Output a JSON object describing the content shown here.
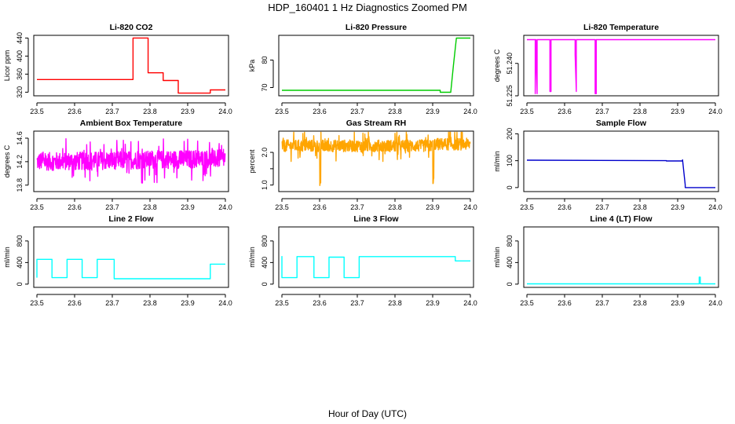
{
  "title": "HDP_160401  1 Hz Diagnostics Zoomed PM",
  "xlabel": "Hour of Day (UTC)",
  "chart_data": [
    {
      "type": "line",
      "title": "Li-820 CO2",
      "ylabel": "Licor ppm",
      "color": "#ff0000",
      "xlim": [
        23.5,
        24.0
      ],
      "ylim": [
        312,
        446
      ],
      "xticks": [
        23.5,
        23.6,
        23.7,
        23.8,
        23.9,
        24.0
      ],
      "yticks": [
        320,
        360,
        400,
        440
      ],
      "noise": 0,
      "x": [
        23.5,
        23.755,
        23.755,
        23.795,
        23.795,
        23.835,
        23.835,
        23.875,
        23.875,
        23.96,
        23.96,
        24.0
      ],
      "y": [
        348,
        348,
        440,
        440,
        363,
        363,
        346,
        346,
        318,
        318,
        325,
        325
      ]
    },
    {
      "type": "line",
      "title": "Li-820 Pressure",
      "ylabel": "kPa",
      "color": "#00cc00",
      "xlim": [
        23.5,
        24.0
      ],
      "ylim": [
        67,
        89
      ],
      "xticks": [
        23.5,
        23.6,
        23.7,
        23.8,
        23.9,
        24.0
      ],
      "yticks": [
        70,
        80
      ],
      "noise": 0,
      "x": [
        23.5,
        23.92,
        23.92,
        23.948,
        23.955,
        23.963,
        24.0
      ],
      "y": [
        69,
        69,
        68.3,
        68.3,
        78,
        88,
        88
      ]
    },
    {
      "type": "line",
      "title": "Li-820 Temperature",
      "ylabel": "degrees C",
      "color": "#ff00ff",
      "xlim": [
        23.5,
        24.0
      ],
      "ylim": [
        51.225,
        51.253
      ],
      "xticks": [
        23.5,
        23.6,
        23.7,
        23.8,
        23.9,
        24.0
      ],
      "yticks": [
        51.225,
        51.24
      ],
      "ytick_labels": [
        "51.225",
        "51.240"
      ],
      "noise": 0,
      "x": [
        23.5,
        23.522,
        23.522,
        23.524,
        23.527,
        23.527,
        23.561,
        23.561,
        23.564,
        23.564,
        23.628,
        23.628,
        23.631,
        23.631,
        23.681,
        23.681,
        23.684,
        23.684,
        24.0
      ],
      "y": [
        51.251,
        51.251,
        51.226,
        51.251,
        51.226,
        51.251,
        51.251,
        51.227,
        51.227,
        51.251,
        51.251,
        51.244,
        51.227,
        51.251,
        51.251,
        51.226,
        51.226,
        51.251,
        51.251
      ]
    },
    {
      "type": "line",
      "title": "Ambient Box Temperature",
      "ylabel": "degrees C",
      "color": "#ff00ff",
      "xlim": [
        23.5,
        24.0
      ],
      "ylim": [
        13.69,
        14.72
      ],
      "xticks": [
        23.5,
        23.6,
        23.7,
        23.8,
        23.9,
        24.0
      ],
      "yticks": [
        13.8,
        14.2,
        14.6
      ],
      "noise": 0.3,
      "x": [
        23.5,
        24.0
      ],
      "y": [
        14.2,
        14.25
      ]
    },
    {
      "type": "line",
      "title": "Gas Stream RH",
      "ylabel": "percent",
      "color": "#ffa500",
      "xlim": [
        23.5,
        24.0
      ],
      "ylim": [
        0.8,
        2.65
      ],
      "xticks": [
        23.5,
        23.6,
        23.7,
        23.8,
        23.9,
        24.0
      ],
      "yticks": [
        1.0,
        1.5,
        2.0
      ],
      "ytick_labels": [
        "1.0",
        "",
        "2.0"
      ],
      "noise": 0.2,
      "x": [
        23.5,
        23.6,
        23.6,
        23.603,
        23.603,
        23.9,
        23.9,
        23.903,
        23.903,
        24.0
      ],
      "y": [
        2.2,
        2.2,
        0.9,
        0.9,
        2.2,
        2.2,
        1.05,
        1.05,
        2.25,
        2.25
      ]
    },
    {
      "type": "line",
      "title": "Sample Flow",
      "ylabel": "ml/min",
      "color": "#0000cc",
      "xlim": [
        23.5,
        24.0
      ],
      "ylim": [
        -15,
        210
      ],
      "xticks": [
        23.5,
        23.6,
        23.7,
        23.8,
        23.9,
        24.0
      ],
      "yticks": [
        0,
        100,
        200
      ],
      "noise": 0,
      "x": [
        23.5,
        23.87,
        23.87,
        23.913,
        23.913,
        23.92,
        23.92,
        24.0
      ],
      "y": [
        102,
        100,
        99,
        99,
        103,
        10,
        0,
        0
      ]
    },
    {
      "type": "line",
      "title": "Line 2 Flow",
      "ylabel": "ml/min",
      "color": "#00ffff",
      "xlim": [
        23.5,
        24.0
      ],
      "ylim": [
        -60,
        1060
      ],
      "xticks": [
        23.5,
        23.6,
        23.7,
        23.8,
        23.9,
        24.0
      ],
      "yticks": [
        0,
        400,
        800
      ],
      "noise": 0,
      "x": [
        23.5,
        23.5,
        23.54,
        23.54,
        23.58,
        23.58,
        23.62,
        23.62,
        23.66,
        23.66,
        23.705,
        23.705,
        23.96,
        23.96,
        24.0
      ],
      "y": [
        120,
        460,
        460,
        120,
        120,
        460,
        460,
        120,
        120,
        460,
        460,
        100,
        100,
        370,
        370
      ]
    },
    {
      "type": "line",
      "title": "Line 3 Flow",
      "ylabel": "ml/min",
      "color": "#00ffff",
      "xlim": [
        23.5,
        24.0
      ],
      "ylim": [
        -60,
        1060
      ],
      "xticks": [
        23.5,
        23.6,
        23.7,
        23.8,
        23.9,
        24.0
      ],
      "yticks": [
        0,
        400,
        800
      ],
      "noise": 0,
      "x": [
        23.5,
        23.5,
        23.505,
        23.505,
        23.54,
        23.54,
        23.585,
        23.585,
        23.625,
        23.625,
        23.665,
        23.665,
        23.705,
        23.705,
        23.96,
        23.96,
        24.0
      ],
      "y": [
        520,
        120,
        120,
        120,
        120,
        510,
        510,
        120,
        120,
        500,
        500,
        120,
        120,
        510,
        510,
        430,
        430
      ]
    },
    {
      "type": "line",
      "title": "Line 4 (LT) Flow",
      "ylabel": "ml/min",
      "color": "#00ffff",
      "xlim": [
        23.5,
        24.0
      ],
      "ylim": [
        -60,
        1060
      ],
      "xticks": [
        23.5,
        23.6,
        23.7,
        23.8,
        23.9,
        24.0
      ],
      "yticks": [
        0,
        400,
        800
      ],
      "noise": 0,
      "x": [
        23.5,
        23.957,
        23.957,
        23.96,
        23.96,
        24.0
      ],
      "y": [
        5,
        5,
        130,
        130,
        5,
        5
      ]
    }
  ]
}
